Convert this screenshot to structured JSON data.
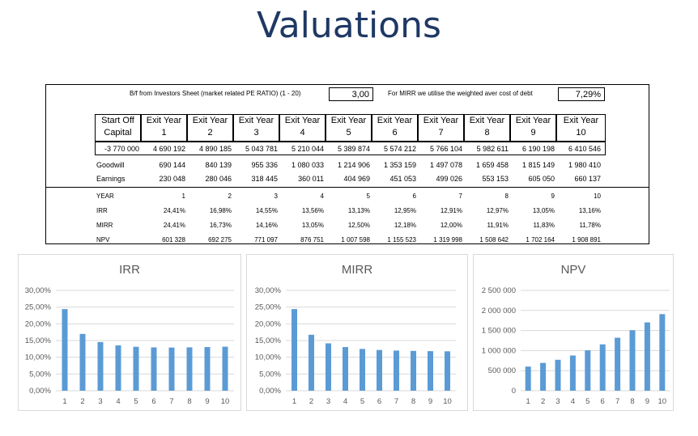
{
  "title": "Valuations",
  "inputs": {
    "pe_label": "B/f from Investors Sheet (market related PE RATIO) (1 - 20)",
    "pe_value": "3,00",
    "mirr_label": "For MIRR we utilise the weighted aver cost of debt",
    "mirr_value": "7,29%"
  },
  "table": {
    "start_header": [
      "Start Off",
      "Capital"
    ],
    "exit_label": "Exit Year",
    "years": [
      "1",
      "2",
      "3",
      "4",
      "5",
      "6",
      "7",
      "8",
      "9",
      "10"
    ],
    "values_row": [
      "-3 770 000",
      "4 690 192",
      "4 890 185",
      "5 043 781",
      "5 210 044",
      "5 389 874",
      "5 574 212",
      "5 766 104",
      "5 982 611",
      "6 190 198",
      "6 410 546"
    ],
    "goodwill": {
      "label": "Goodwill",
      "values": [
        "690 144",
        "840 139",
        "955 336",
        "1 080 033",
        "1 214 906",
        "1 353 159",
        "1 497 078",
        "1 659 458",
        "1 815 149",
        "1 980 410"
      ]
    },
    "earnings": {
      "label": "Earnings",
      "values": [
        "230 048",
        "280 046",
        "318 445",
        "360 011",
        "404 969",
        "451 053",
        "499 026",
        "553 153",
        "605 050",
        "660 137"
      ]
    }
  },
  "results": {
    "year": {
      "label": "YEAR",
      "values": [
        "1",
        "2",
        "3",
        "4",
        "5",
        "6",
        "7",
        "8",
        "9",
        "10"
      ]
    },
    "irr": {
      "label": "IRR",
      "values": [
        "24,41%",
        "16,98%",
        "14,55%",
        "13,56%",
        "13,13%",
        "12,95%",
        "12,91%",
        "12,97%",
        "13,05%",
        "13,16%"
      ]
    },
    "mirr": {
      "label": "MIRR",
      "values": [
        "24,41%",
        "16,73%",
        "14,16%",
        "13,05%",
        "12,50%",
        "12,18%",
        "12,00%",
        "11,91%",
        "11,83%",
        "11,78%"
      ]
    },
    "npv": {
      "label": "NPV",
      "values": [
        "601 328",
        "692 275",
        "771 097",
        "876 751",
        "1 007 598",
        "1 155 523",
        "1 319 998",
        "1 508 642",
        "1 702 164",
        "1 908 891"
      ]
    }
  },
  "colors": {
    "title": "#1f3864",
    "bar": "#5b9bd5",
    "grid": "#d9d9d9",
    "axis_text": "#595959"
  },
  "chart_data": [
    {
      "type": "bar",
      "title": "IRR",
      "categories": [
        "1",
        "2",
        "3",
        "4",
        "5",
        "6",
        "7",
        "8",
        "9",
        "10"
      ],
      "values": [
        24.41,
        16.98,
        14.55,
        13.56,
        13.13,
        12.95,
        12.91,
        12.97,
        13.05,
        13.16
      ],
      "ylim": [
        0,
        30
      ],
      "ytick_values": [
        0,
        5,
        10,
        15,
        20,
        25,
        30
      ],
      "ytick_labels": [
        "0,00%",
        "5,00%",
        "10,00%",
        "15,00%",
        "20,00%",
        "25,00%",
        "30,00%"
      ],
      "grid": true
    },
    {
      "type": "bar",
      "title": "MIRR",
      "categories": [
        "1",
        "2",
        "3",
        "4",
        "5",
        "6",
        "7",
        "8",
        "9",
        "10"
      ],
      "values": [
        24.41,
        16.73,
        14.16,
        13.05,
        12.5,
        12.18,
        12.0,
        11.91,
        11.83,
        11.78
      ],
      "ylim": [
        0,
        30
      ],
      "ytick_values": [
        0,
        5,
        10,
        15,
        20,
        25,
        30
      ],
      "ytick_labels": [
        "0,00%",
        "5,00%",
        "10,00%",
        "15,00%",
        "20,00%",
        "25,00%",
        "30,00%"
      ],
      "grid": true
    },
    {
      "type": "bar",
      "title": "NPV",
      "categories": [
        "1",
        "2",
        "3",
        "4",
        "5",
        "6",
        "7",
        "8",
        "9",
        "10"
      ],
      "values": [
        601328,
        692275,
        771097,
        876751,
        1007598,
        1155523,
        1319998,
        1508642,
        1702164,
        1908891
      ],
      "ylim": [
        0,
        2500000
      ],
      "ytick_values": [
        0,
        500000,
        1000000,
        1500000,
        2000000,
        2500000
      ],
      "ytick_labels": [
        "0",
        "500 000",
        "1 000 000",
        "1 500 000",
        "2 000 000",
        "2 500 000"
      ],
      "grid": true
    }
  ]
}
